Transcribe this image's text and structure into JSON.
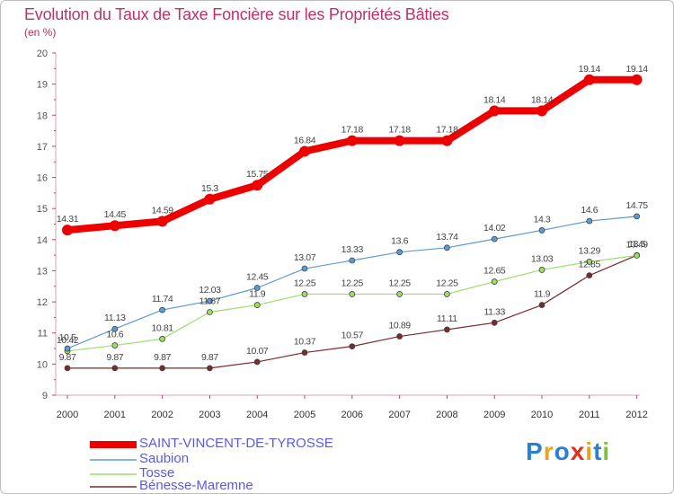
{
  "title": "Evolution du Taux de Taxe Foncière sur les Propriétés Bâties",
  "unit_label": "(en %)",
  "brand": {
    "p": "P",
    "r": "r",
    "o": "o",
    "x": "x",
    "i1": "i",
    "t": "t",
    "i2": "i"
  },
  "colors": {
    "title": "#c0306a",
    "legend_text": "#5a5ae6"
  },
  "chart_data": {
    "type": "line",
    "title": "Evolution du Taux de Taxe Foncière sur les Propriétés Bâties",
    "ylabel": "(en %)",
    "xlabel": "",
    "x": [
      "2000",
      "2001",
      "2002",
      "2003",
      "2004",
      "2005",
      "2006",
      "2007",
      "2008",
      "2009",
      "2010",
      "2011",
      "2012"
    ],
    "ylim": [
      9,
      20
    ],
    "yticks": [
      "9",
      "10",
      "11",
      "12",
      "13",
      "14",
      "15",
      "16",
      "17",
      "18",
      "19",
      "20"
    ],
    "legend_position": "bottom-left",
    "series": [
      {
        "name": "SAINT-VINCENT-DE-TYROSSE",
        "color": "#ee0000",
        "width": 8,
        "marker": 5,
        "values": [
          14.31,
          14.45,
          14.59,
          15.3,
          15.75,
          16.84,
          17.18,
          17.18,
          17.18,
          18.14,
          18.14,
          19.14,
          19.14
        ],
        "labels": [
          "14.31",
          "14.45",
          "14.59",
          "15.3",
          "15.75",
          "16.84",
          "17.18",
          "17.18",
          "17.18",
          "18.14",
          "18.14",
          "19.14",
          "19.14"
        ]
      },
      {
        "name": "Saubion",
        "color": "#5b9bd5",
        "width": 1.2,
        "marker": 3,
        "values": [
          10.5,
          11.13,
          11.74,
          12.03,
          12.45,
          13.07,
          13.33,
          13.6,
          13.74,
          14.02,
          14.3,
          14.6,
          14.75
        ],
        "labels": [
          "10.5",
          "11.13",
          "11.74",
          "12.03",
          "12.45",
          "13.07",
          "13.33",
          "13.6",
          "13.74",
          "14.02",
          "14.3",
          "14.6",
          "14.75"
        ]
      },
      {
        "name": "Tosse",
        "color": "#99e066",
        "width": 1.2,
        "marker": 3,
        "values": [
          10.42,
          10.6,
          10.81,
          11.67,
          11.9,
          12.25,
          12.25,
          12.25,
          12.25,
          12.65,
          13.03,
          13.29,
          13.49
        ],
        "labels": [
          "10.42",
          "10.6",
          "10.81",
          "11.67",
          "11.9",
          "12.25",
          "12.25",
          "12.25",
          "12.25",
          "12.65",
          "13.03",
          "13.29",
          "13.49"
        ]
      },
      {
        "name": "Bénesse-Maremne",
        "color": "#7a2a2a",
        "width": 1.2,
        "marker": 3,
        "values": [
          9.87,
          9.87,
          9.87,
          9.87,
          10.07,
          10.37,
          10.57,
          10.89,
          11.11,
          11.33,
          11.9,
          12.85,
          13.5
        ],
        "labels": [
          "9.87",
          "9.87",
          "9.87",
          "9.87",
          "10.07",
          "10.37",
          "10.57",
          "10.89",
          "11.11",
          "11.33",
          "11.9",
          "12.85",
          "13.5"
        ]
      }
    ]
  }
}
